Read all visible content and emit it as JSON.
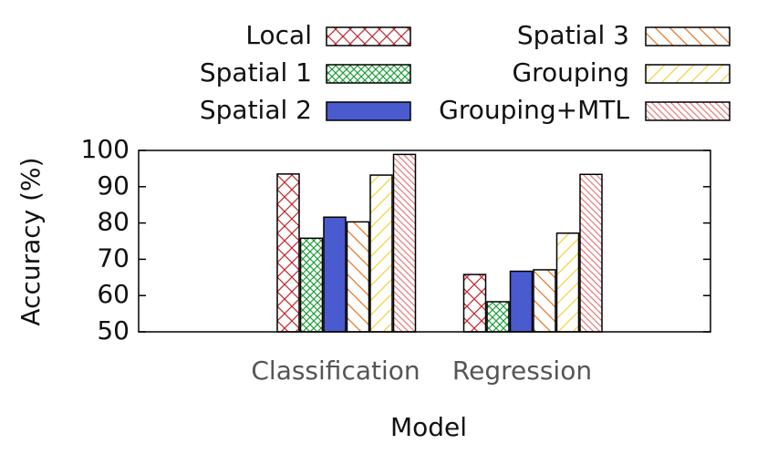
{
  "chart_data": {
    "type": "bar",
    "y_label": "Accuracy (%)",
    "x_label": "Model",
    "categories": [
      "Classification",
      "Regression"
    ],
    "ylim": [
      50,
      100
    ],
    "yticks": [
      50,
      60,
      70,
      80,
      90,
      100
    ],
    "series": [
      {
        "name": "Local",
        "color": "#c0272d",
        "hatch": "cross",
        "values": [
          93.5,
          65.8
        ]
      },
      {
        "name": "Spatial 1",
        "color": "#1f9e3a",
        "hatch": "fine-cross",
        "values": [
          75.8,
          58.3
        ]
      },
      {
        "name": "Spatial 2",
        "color": "#4a5bd0",
        "hatch": "solid",
        "values": [
          81.6,
          66.7
        ]
      },
      {
        "name": "Spatial 3",
        "color": "#e8731e",
        "hatch": "back",
        "values": [
          80.3,
          67.1
        ]
      },
      {
        "name": "Grouping",
        "color": "#f2d43a",
        "hatch": "forward",
        "values": [
          93.2,
          77.2
        ]
      },
      {
        "name": "Grouping+MTL",
        "color": "#e87a7a",
        "hatch": "dense-back",
        "values": [
          98.9,
          93.4
        ]
      }
    ]
  }
}
